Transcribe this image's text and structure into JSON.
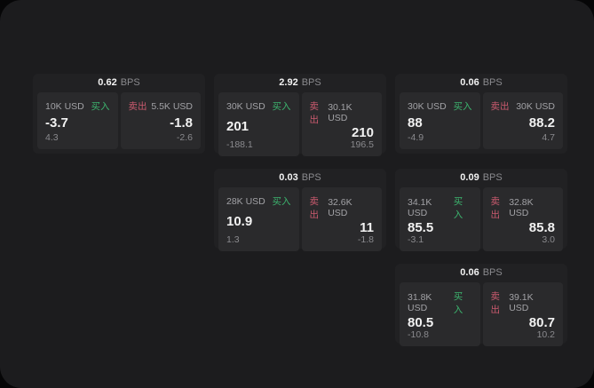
{
  "labels": {
    "bps_unit": "BPS",
    "buy": "买入",
    "sell": "卖出"
  },
  "colors": {
    "buy_green": "#3cb46e",
    "sell_red": "#c95a6e",
    "page_bg": "#1c1c1e",
    "card_bg": "#212123",
    "panel_bg": "#2a2a2c"
  },
  "cards": [
    {
      "bps": "0.62",
      "buy": {
        "amount": "10K USD",
        "price": "-3.7",
        "delta": "4.3"
      },
      "sell": {
        "amount": "5.5K USD",
        "price": "-1.8",
        "delta": "-2.6"
      }
    },
    {
      "bps": "2.92",
      "buy": {
        "amount": "30K USD",
        "price": "201",
        "delta": "-188.1"
      },
      "sell": {
        "amount": "30.1K USD",
        "price": "210",
        "delta": "196.5"
      }
    },
    {
      "bps": "0.06",
      "buy": {
        "amount": "30K USD",
        "price": "88",
        "delta": "-4.9"
      },
      "sell": {
        "amount": "30K USD",
        "price": "88.2",
        "delta": "4.7"
      }
    },
    {
      "bps": "0.03",
      "buy": {
        "amount": "28K USD",
        "price": "10.9",
        "delta": "1.3"
      },
      "sell": {
        "amount": "32.6K USD",
        "price": "11",
        "delta": "-1.8"
      }
    },
    {
      "bps": "0.09",
      "buy": {
        "amount": "34.1K USD",
        "price": "85.5",
        "delta": "-3.1"
      },
      "sell": {
        "amount": "32.8K USD",
        "price": "85.8",
        "delta": "3.0"
      }
    },
    {
      "bps": "0.06",
      "buy": {
        "amount": "31.8K USD",
        "price": "80.5",
        "delta": "-10.8"
      },
      "sell": {
        "amount": "39.1K USD",
        "price": "80.7",
        "delta": "10.2"
      }
    }
  ]
}
